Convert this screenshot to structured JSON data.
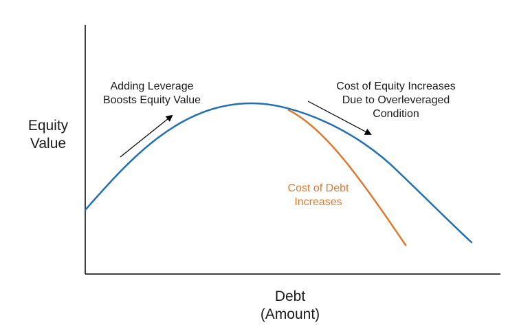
{
  "axes": {
    "y_label": "Equity\nValue",
    "x_label": "Debt\n(Amount)"
  },
  "annotations": {
    "leverage_boost": "Adding Leverage\nBoosts Equity Value",
    "cost_of_equity": "Cost of Equity Increases\nDue to Overleveraged\nCondition",
    "cost_of_debt": "Cost of Debt\nIncreases"
  },
  "colors": {
    "axis": "#000000",
    "equity_curve": "#1f6fb5",
    "debt_curve": "#e0782c",
    "annotation_debt_text": "#e0782c",
    "arrow": "#000000"
  }
}
